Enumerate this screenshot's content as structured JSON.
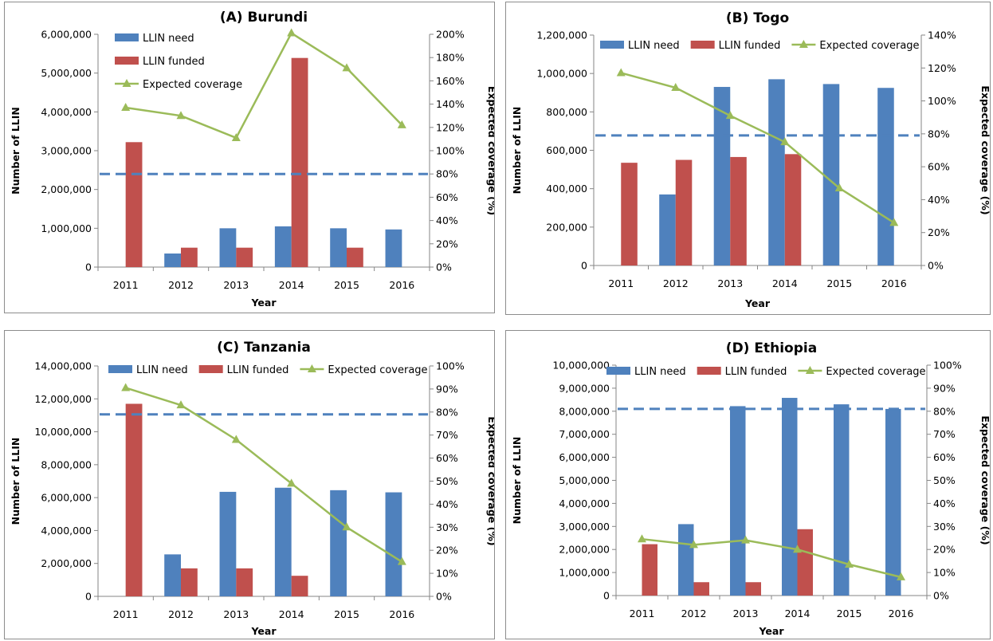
{
  "colors": {
    "need": "#4f81bd",
    "funded": "#c0504d",
    "coverage": "#9bbb59",
    "target": "#4f81bd"
  },
  "chart_data": [
    {
      "type": "bar",
      "title": "(A) Burundi",
      "xlabel": "Year",
      "ylabel": "Number of LLIN",
      "y2label": "Expected coverage (%)",
      "categories": [
        "2011",
        "2012",
        "2013",
        "2014",
        "2015",
        "2016"
      ],
      "ylim": [
        0,
        6000000
      ],
      "yticks": [
        "0",
        "1,000,000",
        "2,000,000",
        "3,000,000",
        "4,000,000",
        "5,000,000",
        "6,000,000"
      ],
      "y2lim": [
        0,
        200
      ],
      "y2ticks": [
        "0%",
        "20%",
        "40%",
        "60%",
        "80%",
        "100%",
        "120%",
        "140%",
        "160%",
        "180%",
        "200%"
      ],
      "legend_layout": "stacked",
      "series": [
        {
          "name": "LLIN need",
          "kind": "bar",
          "axis": "left",
          "values": [
            0,
            350000,
            1000000,
            1050000,
            1000000,
            970000
          ]
        },
        {
          "name": "LLIN funded",
          "kind": "bar",
          "axis": "left",
          "values": [
            3220000,
            500000,
            500000,
            5390000,
            500000,
            0
          ]
        },
        {
          "name": "Expected coverage",
          "kind": "line",
          "axis": "right",
          "values": [
            137,
            130,
            111,
            201,
            171,
            122
          ]
        }
      ],
      "target_line": 80
    },
    {
      "type": "bar",
      "title": "(B) Togo",
      "xlabel": "Year",
      "ylabel": "Number of LLIN",
      "y2label": "Expected coverage (%)",
      "categories": [
        "2011",
        "2012",
        "2013",
        "2014",
        "2015",
        "2016"
      ],
      "ylim": [
        0,
        1200000
      ],
      "yticks": [
        "0",
        "200,000",
        "400,000",
        "600,000",
        "800,000",
        "1,000,000",
        "1,200,000"
      ],
      "y2lim": [
        0,
        140
      ],
      "y2ticks": [
        "0%",
        "20%",
        "40%",
        "60%",
        "80%",
        "100%",
        "120%",
        "140%"
      ],
      "legend_layout": "row",
      "series": [
        {
          "name": "LLIN need",
          "kind": "bar",
          "axis": "left",
          "values": [
            0,
            370000,
            930000,
            970000,
            945000,
            925000
          ]
        },
        {
          "name": "LLIN funded",
          "kind": "bar",
          "axis": "left",
          "values": [
            535000,
            550000,
            565000,
            580000,
            0,
            0
          ]
        },
        {
          "name": "Expected coverage",
          "kind": "line",
          "axis": "right",
          "values": [
            117,
            108,
            91,
            75,
            47,
            26
          ]
        }
      ],
      "target_line": 79
    },
    {
      "type": "bar",
      "title": "(C) Tanzania",
      "xlabel": "Year",
      "ylabel": "Number of LLIN",
      "y2label": "Expected coverage (%)",
      "categories": [
        "2011",
        "2012",
        "2013",
        "2014",
        "2015",
        "2016"
      ],
      "ylim": [
        0,
        14000000
      ],
      "yticks": [
        "0",
        "2,000,000",
        "4,000,000",
        "6,000,000",
        "8,000,000",
        "10,000,000",
        "12,000,000",
        "14,000,000"
      ],
      "y2lim": [
        0,
        100
      ],
      "y2ticks": [
        "0%",
        "10%",
        "20%",
        "30%",
        "40%",
        "50%",
        "60%",
        "70%",
        "80%",
        "90%",
        "100%"
      ],
      "legend_layout": "row",
      "series": [
        {
          "name": "LLIN need",
          "kind": "bar",
          "axis": "left",
          "values": [
            0,
            2550000,
            6350000,
            6600000,
            6450000,
            6320000
          ]
        },
        {
          "name": "LLIN funded",
          "kind": "bar",
          "axis": "left",
          "values": [
            11700000,
            1700000,
            1700000,
            1250000,
            0,
            0
          ]
        },
        {
          "name": "Expected coverage",
          "kind": "line",
          "axis": "right",
          "values": [
            90.5,
            83,
            68,
            49,
            30,
            15
          ]
        }
      ],
      "target_line": 79
    },
    {
      "type": "bar",
      "title": "(D) Ethiopia",
      "xlabel": "Year",
      "ylabel": "Number of LLIN",
      "y2label": "Expected coverage (%)",
      "categories": [
        "2011",
        "2012",
        "2013",
        "2014",
        "2015",
        "2016"
      ],
      "ylim": [
        0,
        10000000
      ],
      "yticks": [
        "0",
        "1,000,000",
        "2,000,000",
        "3,000,000",
        "4,000,000",
        "5,000,000",
        "6,000,000",
        "7,000,000",
        "8,000,000",
        "9,000,000",
        "10,000,000"
      ],
      "y2lim": [
        0,
        100
      ],
      "y2ticks": [
        "0%",
        "10%",
        "20%",
        "30%",
        "40%",
        "50%",
        "60%",
        "70%",
        "80%",
        "90%",
        "100%"
      ],
      "legend_layout": "row",
      "series": [
        {
          "name": "LLIN need",
          "kind": "bar",
          "axis": "left",
          "values": [
            0,
            3100000,
            8220000,
            8580000,
            8300000,
            8100000
          ]
        },
        {
          "name": "LLIN funded",
          "kind": "bar",
          "axis": "left",
          "values": [
            2230000,
            580000,
            580000,
            2880000,
            0,
            0
          ]
        },
        {
          "name": "Expected coverage",
          "kind": "line",
          "axis": "right",
          "values": [
            24.5,
            22,
            24,
            20,
            13.5,
            8
          ]
        }
      ],
      "target_line": 81
    }
  ]
}
